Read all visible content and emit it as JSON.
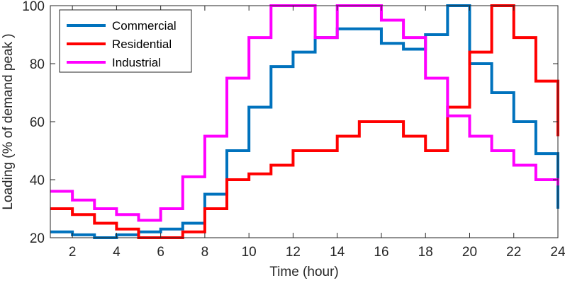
{
  "chart_data": {
    "type": "line",
    "step": "post",
    "xlabel": "Time (hour)",
    "ylabel": "Loading (% of demand peak )",
    "xlim": [
      1,
      24
    ],
    "ylim": [
      20,
      100
    ],
    "xticks": [
      2,
      4,
      6,
      8,
      10,
      12,
      14,
      16,
      18,
      20,
      22,
      24
    ],
    "yticks": [
      20,
      40,
      60,
      80,
      100
    ],
    "grid": false,
    "legend_position": "top-left",
    "x": [
      1,
      2,
      3,
      4,
      5,
      6,
      7,
      8,
      9,
      10,
      11,
      12,
      13,
      14,
      15,
      16,
      17,
      18,
      19,
      20,
      21,
      22,
      23,
      24
    ],
    "series": [
      {
        "name": "Commercial",
        "color": "#0072BD",
        "values": [
          22,
          21,
          20,
          21,
          22,
          23,
          25,
          35,
          50,
          65,
          79,
          84,
          89,
          92,
          92,
          87,
          85,
          90,
          100,
          80,
          70,
          60,
          49,
          30
        ]
      },
      {
        "name": "Residential",
        "color": "#FF0000",
        "values": [
          30,
          28,
          25,
          23,
          20,
          20,
          22,
          30,
          40,
          42,
          45,
          50,
          50,
          55,
          60,
          60,
          55,
          50,
          65,
          84,
          100,
          89,
          74,
          55
        ]
      },
      {
        "name": "Industrial",
        "color": "#FF00FF",
        "values": [
          36,
          33,
          30,
          28,
          26,
          30,
          41,
          55,
          75,
          89,
          100,
          100,
          89,
          100,
          100,
          95,
          89,
          75,
          62,
          55,
          50,
          45,
          40,
          38
        ]
      }
    ]
  }
}
